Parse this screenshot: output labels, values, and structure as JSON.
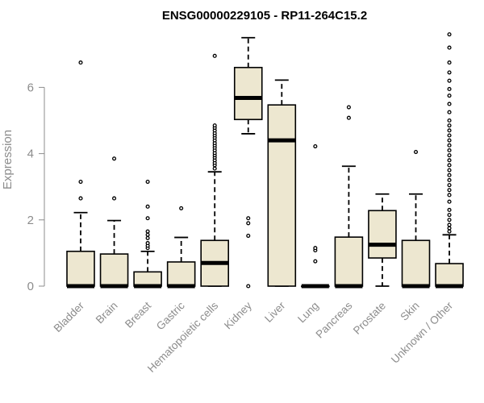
{
  "chart_data": {
    "type": "boxplot",
    "title": "ENSG00000229105 - RP11-264C15.2",
    "xlabel": "",
    "ylabel": "Expression",
    "ylim": [
      0,
      7.6
    ],
    "yticks": [
      0,
      2,
      4,
      6
    ],
    "grid": false,
    "legend": "none",
    "colors": {
      "box_fill": "#ede7d0",
      "stroke": "#000000",
      "axis_text": "#8c8c8c"
    },
    "categories": [
      "Bladder",
      "Brain",
      "Breast",
      "Gastric",
      "Hematopoietic cells",
      "Kidney",
      "Liver",
      "Lung",
      "Pancreas",
      "Prostate",
      "Skin",
      "Unknown / Other"
    ],
    "boxes": [
      {
        "category": "Bladder",
        "whisker_low": 0,
        "q1": 0,
        "median": 0,
        "q3": 1.05,
        "whisker_high": 2.22,
        "outliers": [
          2.65,
          3.15,
          6.75
        ]
      },
      {
        "category": "Brain",
        "whisker_low": 0,
        "q1": 0,
        "median": 0,
        "q3": 0.97,
        "whisker_high": 1.98,
        "outliers": [
          2.65,
          3.85
        ]
      },
      {
        "category": "Breast",
        "whisker_low": 0,
        "q1": 0,
        "median": 0,
        "q3": 0.43,
        "whisker_high": 1.05,
        "outliers": [
          1.15,
          1.22,
          1.3,
          1.45,
          1.55,
          1.65,
          2.05,
          2.4,
          3.15
        ]
      },
      {
        "category": "Gastric",
        "whisker_low": 0,
        "q1": 0,
        "median": 0,
        "q3": 0.73,
        "whisker_high": 1.47,
        "outliers": [
          2.35
        ]
      },
      {
        "category": "Hematopoietic cells",
        "whisker_low": 0,
        "q1": 0,
        "median": 0.7,
        "q3": 1.38,
        "whisker_high": 3.45,
        "outliers": [
          3.55,
          3.65,
          3.72,
          3.8,
          3.88,
          3.95,
          4.02,
          4.1,
          4.18,
          4.25,
          4.32,
          4.4,
          4.48,
          4.55,
          4.62,
          4.7,
          4.78,
          4.85,
          6.95
        ]
      },
      {
        "category": "Kidney",
        "whisker_low": 4.6,
        "q1": 5.03,
        "median": 5.68,
        "q3": 6.6,
        "whisker_high": 7.5,
        "outliers": [
          0,
          1.52,
          1.9,
          2.05
        ]
      },
      {
        "category": "Liver",
        "whisker_low": 0,
        "q1": 0,
        "median": 4.4,
        "q3": 5.47,
        "whisker_high": 6.22,
        "outliers": []
      },
      {
        "category": "Lung",
        "whisker_low": 0,
        "q1": 0,
        "median": 0,
        "q3": 0,
        "whisker_high": 0,
        "outliers": [
          0.75,
          1.08,
          1.15,
          4.22
        ]
      },
      {
        "category": "Pancreas",
        "whisker_low": 0,
        "q1": 0,
        "median": 0,
        "q3": 1.48,
        "whisker_high": 3.62,
        "outliers": [
          5.08,
          5.4
        ]
      },
      {
        "category": "Prostate",
        "whisker_low": 0,
        "q1": 0.85,
        "median": 1.25,
        "q3": 2.28,
        "whisker_high": 2.78,
        "outliers": []
      },
      {
        "category": "Skin",
        "whisker_low": 0,
        "q1": 0,
        "median": 0,
        "q3": 1.38,
        "whisker_high": 2.78,
        "outliers": [
          4.05
        ]
      },
      {
        "category": "Unknown / Other",
        "whisker_low": 0,
        "q1": 0,
        "median": 0,
        "q3": 0.68,
        "whisker_high": 1.55,
        "outliers": [
          1.65,
          1.75,
          1.85,
          2.0,
          2.15,
          2.3,
          2.55,
          2.75,
          2.9,
          3.05,
          3.2,
          3.35,
          3.5,
          3.65,
          3.8,
          3.95,
          4.1,
          4.25,
          4.4,
          4.55,
          4.7,
          4.85,
          5.0,
          5.25,
          5.5,
          5.75,
          5.95,
          6.2,
          6.45,
          6.75,
          7.2,
          7.6
        ]
      }
    ]
  }
}
